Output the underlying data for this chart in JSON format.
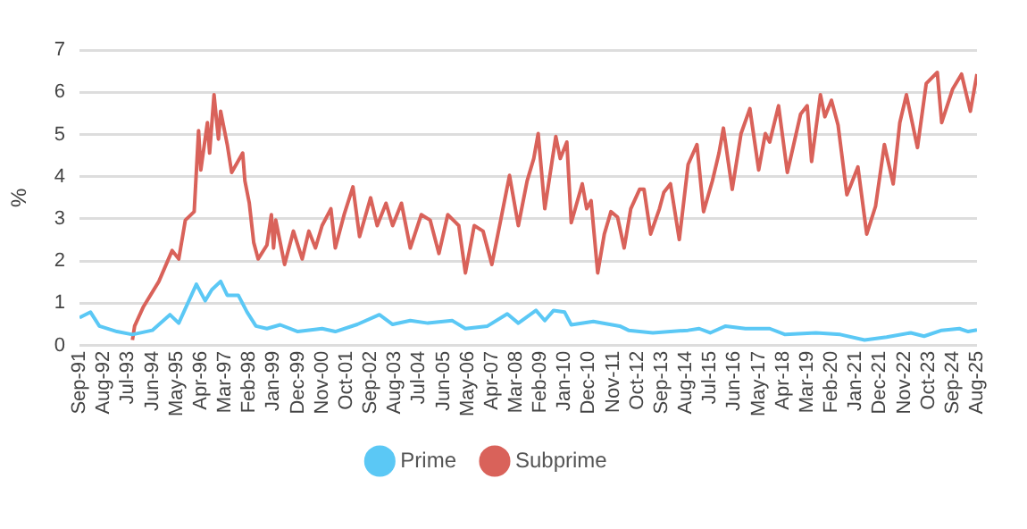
{
  "chart_data": {
    "type": "line",
    "ylabel": "%",
    "legend": "bottom",
    "grid": "y",
    "xlim": [
      "1991-09",
      "2025-08"
    ],
    "ylim": [
      0,
      7
    ],
    "yticks": [
      0,
      1,
      2,
      3,
      4,
      5,
      6,
      7
    ],
    "xticks": [
      {
        "value": "1991-09",
        "label": "Sep-91"
      },
      {
        "value": "1992-08",
        "label": "Aug-92"
      },
      {
        "value": "1993-07",
        "label": "Jul-93"
      },
      {
        "value": "1994-06",
        "label": "Jun-94"
      },
      {
        "value": "1995-05",
        "label": "May-95"
      },
      {
        "value": "1996-04",
        "label": "Apr-96"
      },
      {
        "value": "1997-03",
        "label": "Mar-97"
      },
      {
        "value": "1998-02",
        "label": "Feb-98"
      },
      {
        "value": "1999-01",
        "label": "Jan-99"
      },
      {
        "value": "1999-12",
        "label": "Dec-99"
      },
      {
        "value": "2000-11",
        "label": "Nov-00"
      },
      {
        "value": "2001-10",
        "label": "Oct-01"
      },
      {
        "value": "2002-09",
        "label": "Sep-02"
      },
      {
        "value": "2003-08",
        "label": "Aug-03"
      },
      {
        "value": "2004-07",
        "label": "Jul-04"
      },
      {
        "value": "2005-06",
        "label": "Jun-05"
      },
      {
        "value": "2006-05",
        "label": "May-06"
      },
      {
        "value": "2007-04",
        "label": "Apr-07"
      },
      {
        "value": "2008-03",
        "label": "Mar-08"
      },
      {
        "value": "2009-02",
        "label": "Feb-09"
      },
      {
        "value": "2010-01",
        "label": "Jan-10"
      },
      {
        "value": "2010-12",
        "label": "Dec-10"
      },
      {
        "value": "2011-11",
        "label": "Nov-11"
      },
      {
        "value": "2012-10",
        "label": "Oct-12"
      },
      {
        "value": "2013-09",
        "label": "Sep-13"
      },
      {
        "value": "2014-08",
        "label": "Aug-14"
      },
      {
        "value": "2015-07",
        "label": "Jul-15"
      },
      {
        "value": "2016-06",
        "label": "Jun-16"
      },
      {
        "value": "2017-05",
        "label": "May-17"
      },
      {
        "value": "2018-04",
        "label": "Apr-18"
      },
      {
        "value": "2019-03",
        "label": "Mar-19"
      },
      {
        "value": "2020-02",
        "label": "Feb-20"
      },
      {
        "value": "2021-01",
        "label": "Jan-21"
      },
      {
        "value": "2021-12",
        "label": "Dec-21"
      },
      {
        "value": "2022-11",
        "label": "Nov-22"
      },
      {
        "value": "2023-10",
        "label": "Oct-23"
      },
      {
        "value": "2024-09",
        "label": "Sep-24"
      },
      {
        "value": "2025-08",
        "label": "Aug-25"
      }
    ],
    "series": [
      {
        "name": "Prime",
        "color": "#5bc8f5",
        "x": [
          "1991-09",
          "1992-02",
          "1992-06",
          "1993-02",
          "1993-09",
          "1994-06",
          "1995-02",
          "1995-06",
          "1996-02",
          "1996-06",
          "1996-09",
          "1997-01",
          "1997-04",
          "1997-09",
          "1998-01",
          "1998-05",
          "1998-10",
          "1999-04",
          "1999-12",
          "2000-11",
          "2001-05",
          "2002-03",
          "2003-01",
          "2003-07",
          "2004-03",
          "2004-11",
          "2005-10",
          "2006-04",
          "2007-02",
          "2007-11",
          "2008-04",
          "2008-12",
          "2009-04",
          "2009-08",
          "2010-01",
          "2010-04",
          "2011-02",
          "2012-02",
          "2012-06",
          "2013-05",
          "2014-09",
          "2015-02",
          "2015-07",
          "2016-02",
          "2016-11",
          "2017-10",
          "2018-05",
          "2019-07",
          "2020-06",
          "2021-05",
          "2022-03",
          "2023-02",
          "2023-08",
          "2024-04",
          "2024-12",
          "2025-04",
          "2025-08"
        ],
        "values": [
          0.66,
          0.79,
          0.46,
          0.33,
          0.26,
          0.36,
          0.73,
          0.53,
          1.45,
          1.06,
          1.32,
          1.52,
          1.19,
          1.19,
          0.79,
          0.46,
          0.4,
          0.49,
          0.33,
          0.4,
          0.33,
          0.5,
          0.73,
          0.5,
          0.59,
          0.53,
          0.59,
          0.4,
          0.46,
          0.75,
          0.53,
          0.83,
          0.59,
          0.83,
          0.79,
          0.49,
          0.57,
          0.46,
          0.36,
          0.3,
          0.36,
          0.4,
          0.3,
          0.46,
          0.4,
          0.4,
          0.26,
          0.3,
          0.26,
          0.13,
          0.2,
          0.3,
          0.22,
          0.36,
          0.4,
          0.33,
          0.37
        ]
      },
      {
        "name": "Subprime",
        "color": "#d9625a",
        "x": [
          "1993-09",
          "1993-10",
          "1994-02",
          "1994-09",
          "1995-03",
          "1995-06",
          "1995-09",
          "1996-01",
          "1996-03",
          "1996-04",
          "1996-07",
          "1996-08",
          "1996-10",
          "1996-12",
          "1997-01",
          "1997-04",
          "1997-06",
          "1997-11",
          "1997-12",
          "1998-02",
          "1998-04",
          "1998-06",
          "1998-10",
          "1998-12",
          "1999-01",
          "1999-02",
          "1999-06",
          "1999-10",
          "2000-02",
          "2000-05",
          "2000-08",
          "2000-11",
          "2001-03",
          "2001-05",
          "2001-09",
          "2002-01",
          "2002-04",
          "2002-09",
          "2002-12",
          "2003-04",
          "2003-07",
          "2003-11",
          "2004-03",
          "2004-08",
          "2004-12",
          "2005-04",
          "2005-08",
          "2006-01",
          "2006-04",
          "2006-08",
          "2006-12",
          "2007-04",
          "2007-08",
          "2007-12",
          "2008-04",
          "2008-08",
          "2008-11",
          "2009-01",
          "2009-04",
          "2009-09",
          "2009-11",
          "2010-02",
          "2010-04",
          "2010-09",
          "2010-11",
          "2011-01",
          "2011-04",
          "2011-07",
          "2011-10",
          "2012-01",
          "2012-04",
          "2012-07",
          "2012-11",
          "2013-01",
          "2013-04",
          "2013-08",
          "2013-10",
          "2014-01",
          "2014-05",
          "2014-09",
          "2015-01",
          "2015-04",
          "2015-08",
          "2015-11",
          "2016-01",
          "2016-05",
          "2016-09",
          "2017-01",
          "2017-05",
          "2017-08",
          "2017-10",
          "2018-02",
          "2018-06",
          "2018-12",
          "2019-03",
          "2019-05",
          "2019-09",
          "2019-11",
          "2020-02",
          "2020-05",
          "2020-09",
          "2020-11",
          "2021-02",
          "2021-06",
          "2021-10",
          "2022-02",
          "2022-06",
          "2022-09",
          "2022-12",
          "2023-05",
          "2023-09",
          "2024-02",
          "2024-04",
          "2024-09",
          "2025-01",
          "2025-05",
          "2025-08"
        ],
        "values": [
          0.13,
          0.46,
          0.92,
          1.52,
          2.25,
          2.05,
          2.97,
          3.17,
          5.09,
          4.16,
          5.28,
          4.56,
          5.94,
          4.89,
          5.55,
          4.76,
          4.1,
          4.56,
          3.9,
          3.37,
          2.44,
          2.05,
          2.38,
          3.1,
          2.31,
          2.97,
          1.92,
          2.71,
          2.05,
          2.71,
          2.31,
          2.84,
          3.24,
          2.31,
          3.1,
          3.76,
          2.58,
          3.5,
          2.84,
          3.37,
          2.84,
          3.37,
          2.31,
          3.1,
          2.97,
          2.18,
          3.1,
          2.84,
          1.72,
          2.84,
          2.71,
          1.92,
          2.97,
          4.03,
          2.84,
          3.9,
          4.43,
          5.02,
          3.24,
          4.95,
          4.43,
          4.82,
          2.91,
          3.83,
          3.24,
          3.43,
          1.72,
          2.64,
          3.17,
          3.04,
          2.31,
          3.24,
          3.7,
          3.7,
          2.64,
          3.24,
          3.63,
          3.83,
          2.51,
          4.29,
          4.76,
          3.17,
          3.9,
          4.56,
          5.15,
          3.7,
          5.02,
          5.61,
          4.16,
          5.02,
          4.82,
          5.68,
          4.1,
          5.48,
          5.68,
          4.36,
          5.94,
          5.42,
          5.81,
          5.22,
          3.57,
          3.83,
          4.23,
          2.64,
          3.3,
          4.76,
          3.83,
          5.28,
          5.94,
          4.69,
          6.21,
          6.47,
          5.28,
          6.08,
          6.43,
          5.55,
          6.43
        ]
      }
    ]
  }
}
